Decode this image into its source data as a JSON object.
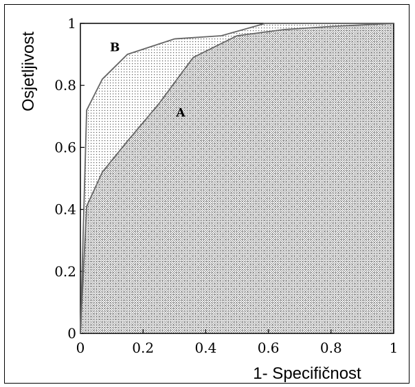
{
  "chart_data": {
    "type": "line",
    "title": "",
    "xlabel": "1- Specifičnost",
    "ylabel": "Osjetljivost",
    "xlim": [
      0,
      1
    ],
    "ylim": [
      0,
      1
    ],
    "xticks": [
      "0",
      "0.2",
      "0.4",
      "0.6",
      "0.8",
      "1"
    ],
    "yticks": [
      "0",
      "0.2",
      "0.4",
      "0.6",
      "0.8",
      "1"
    ],
    "grid": false,
    "series": [
      {
        "name": "A",
        "x": [
          0,
          0.02,
          0.07,
          0.15,
          0.25,
          0.36,
          0.5,
          0.65,
          0.8,
          1.0
        ],
        "y": [
          0,
          0.41,
          0.52,
          0.62,
          0.74,
          0.89,
          0.96,
          0.98,
          0.99,
          1.0
        ]
      },
      {
        "name": "B",
        "x": [
          0,
          0.02,
          0.07,
          0.15,
          0.3,
          0.45,
          0.59,
          1.0
        ],
        "y": [
          0,
          0.72,
          0.82,
          0.9,
          0.95,
          0.96,
          1.0,
          1.0
        ]
      }
    ],
    "area_fill": "dotted pattern under curves"
  }
}
